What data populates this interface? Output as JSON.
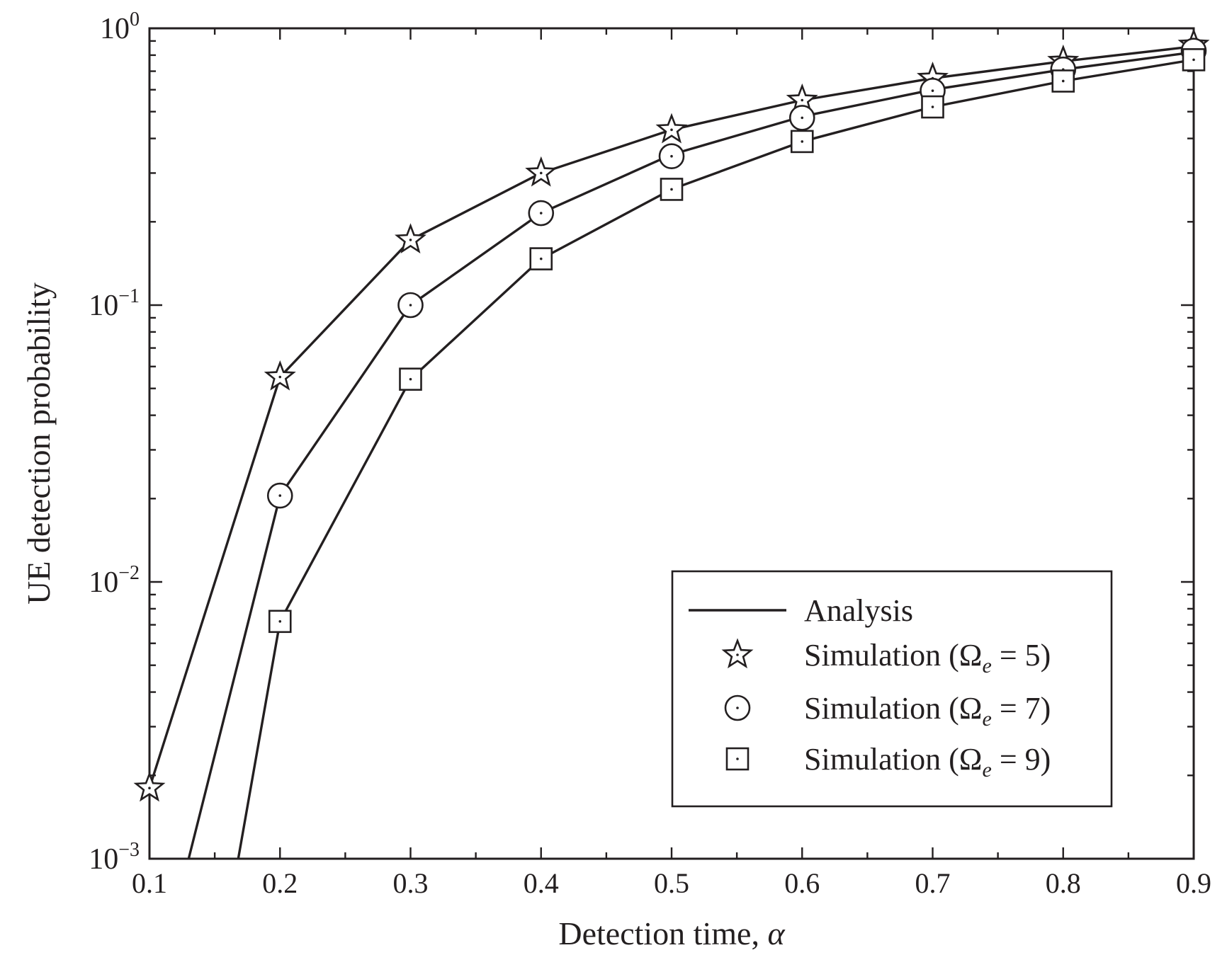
{
  "chart_data": {
    "type": "line",
    "xlabel_main": "Detection time, ",
    "xlabel_symbol": "α",
    "ylabel": "UE detection probability",
    "y_scale": "log",
    "xlim": [
      0.1,
      0.9
    ],
    "ylim": [
      0.001,
      1
    ],
    "x_ticks": [
      "0.1",
      "0.2",
      "0.3",
      "0.4",
      "0.5",
      "0.6",
      "0.7",
      "0.8",
      "0.9"
    ],
    "y_ticks": [
      {
        "base": "10",
        "exp": "0",
        "value": 1
      },
      {
        "base": "10",
        "exp": "−1",
        "value": 0.1
      },
      {
        "base": "10",
        "exp": "−2",
        "value": 0.01
      },
      {
        "base": "10",
        "exp": "−3",
        "value": 0.001
      }
    ],
    "grid": false,
    "legend_position": "lower-right",
    "legend": [
      {
        "kind": "line",
        "text_pre": "Analysis",
        "sub": "",
        "text_post": ""
      },
      {
        "kind": "star",
        "text_pre": "Simulation (Ω",
        "sub": "e",
        "text_post": " = 5)"
      },
      {
        "kind": "circle",
        "text_pre": "Simulation (Ω",
        "sub": "e",
        "text_post": " = 7)"
      },
      {
        "kind": "square",
        "text_pre": "Simulation (Ω",
        "sub": "e",
        "text_post": " = 9)"
      }
    ],
    "series": [
      {
        "marker": "star",
        "analysis": {
          "x": [
            0.1,
            0.2,
            0.3,
            0.4,
            0.5,
            0.6,
            0.7,
            0.8,
            0.9
          ],
          "y": [
            0.0018,
            0.055,
            0.172,
            0.3,
            0.43,
            0.55,
            0.66,
            0.76,
            0.86
          ]
        },
        "simulation": {
          "x": [
            0.1,
            0.2,
            0.3,
            0.4,
            0.5,
            0.6,
            0.7,
            0.8,
            0.9
          ],
          "y": [
            0.0018,
            0.055,
            0.172,
            0.3,
            0.43,
            0.55,
            0.66,
            0.76,
            0.87
          ]
        }
      },
      {
        "marker": "circle",
        "analysis": {
          "x": [
            0.13,
            0.2,
            0.3,
            0.4,
            0.5,
            0.6,
            0.7,
            0.8,
            0.9
          ],
          "y": [
            0.001,
            0.0205,
            0.1,
            0.215,
            0.35,
            0.48,
            0.6,
            0.71,
            0.82
          ]
        },
        "simulation": {
          "x": [
            0.2,
            0.3,
            0.4,
            0.5,
            0.6,
            0.7,
            0.8,
            0.9
          ],
          "y": [
            0.0205,
            0.1,
            0.215,
            0.345,
            0.475,
            0.595,
            0.71,
            0.83
          ]
        }
      },
      {
        "marker": "square",
        "analysis": {
          "x": [
            0.168,
            0.2,
            0.3,
            0.4,
            0.5,
            0.6,
            0.7,
            0.8,
            0.9
          ],
          "y": [
            0.001,
            0.0072,
            0.054,
            0.147,
            0.262,
            0.39,
            0.52,
            0.645,
            0.77
          ]
        },
        "simulation": {
          "x": [
            0.2,
            0.3,
            0.4,
            0.5,
            0.6,
            0.7,
            0.8,
            0.9
          ],
          "y": [
            0.0072,
            0.054,
            0.147,
            0.262,
            0.39,
            0.52,
            0.645,
            0.77
          ]
        }
      }
    ]
  }
}
